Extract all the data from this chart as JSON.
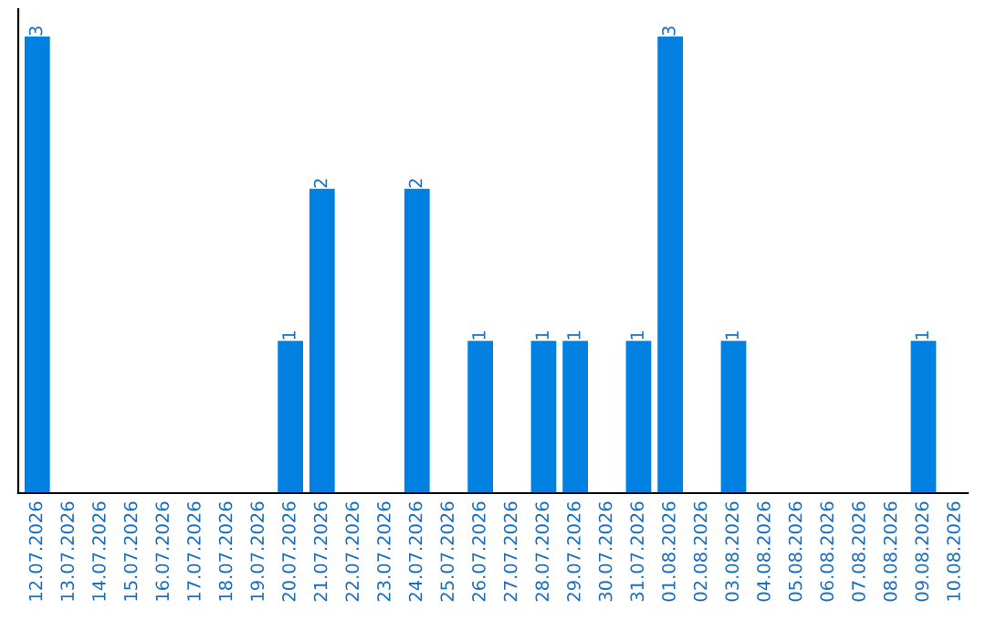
{
  "chart_data": {
    "type": "bar",
    "categories": [
      "12.07.2026",
      "13.07.2026",
      "14.07.2026",
      "15.07.2026",
      "16.07.2026",
      "17.07.2026",
      "18.07.2026",
      "19.07.2026",
      "20.07.2026",
      "21.07.2026",
      "22.07.2026",
      "23.07.2026",
      "24.07.2026",
      "25.07.2026",
      "26.07.2026",
      "27.07.2026",
      "28.07.2026",
      "29.07.2026",
      "30.07.2026",
      "31.07.2026",
      "01.08.2026",
      "02.08.2026",
      "03.08.2026",
      "04.08.2026",
      "05.08.2026",
      "06.08.2026",
      "07.08.2026",
      "08.08.2026",
      "09.08.2026",
      "10.08.2026"
    ],
    "values": [
      3,
      0,
      0,
      0,
      0,
      0,
      0,
      0,
      1,
      2,
      0,
      0,
      2,
      0,
      1,
      0,
      1,
      1,
      0,
      1,
      3,
      0,
      1,
      0,
      0,
      0,
      0,
      0,
      1,
      0
    ],
    "value_labels": [
      "3",
      null,
      null,
      null,
      null,
      null,
      null,
      null,
      "1",
      "2",
      null,
      null,
      "2",
      null,
      "1",
      null,
      "1",
      "1",
      null,
      "1",
      "3",
      null,
      "1",
      null,
      null,
      null,
      null,
      null,
      "1",
      null
    ],
    "color": "#0080e0",
    "tick_labels": "x",
    "grid": false,
    "legend": false
  }
}
